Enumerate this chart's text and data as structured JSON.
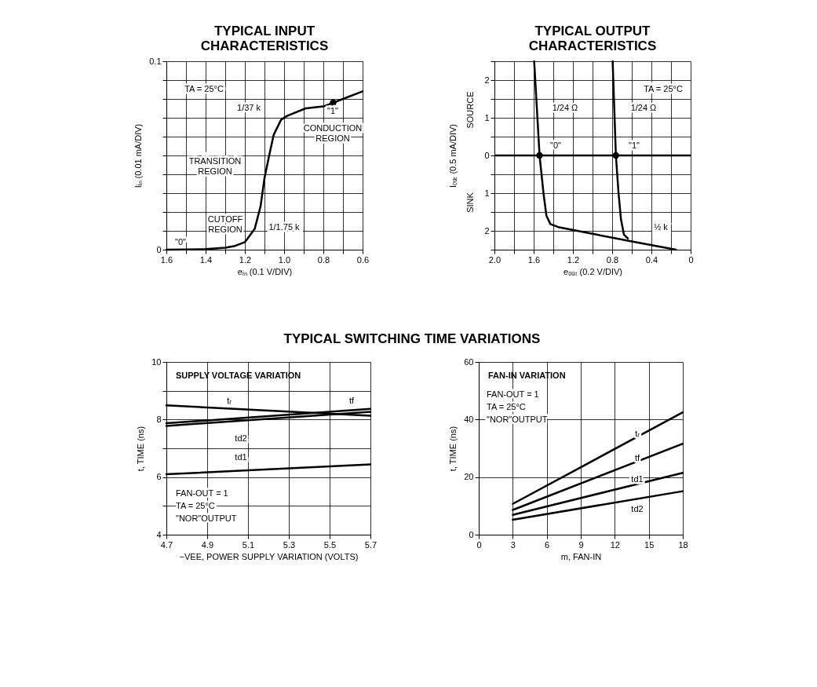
{
  "chart_data": [
    {
      "type": "line",
      "title": "TYPICAL INPUT CHARACTERISTICS",
      "xlabel": "eᵢₙ (0.1 V/DIV)",
      "ylabel": "Iᵢₙ (0.01 mA/DIV)",
      "xlim": [
        1.6,
        0.6
      ],
      "xticks": [
        1.6,
        {
          "value": 1.5,
          "label": null
        },
        1.4,
        {
          "value": 1.3,
          "label": null
        },
        1.2,
        {
          "value": 1.1,
          "label": null
        },
        {
          "value": 1.0,
          "label": "1.0"
        },
        {
          "value": 0.9,
          "label": null
        },
        0.8,
        {
          "value": 0.7,
          "label": null
        },
        0.6
      ],
      "ylim": [
        0,
        0.1
      ],
      "yticks": [
        0,
        {
          "value": 0.01,
          "label": null
        },
        {
          "value": 0.02,
          "label": null
        },
        {
          "value": 0.03,
          "label": null
        },
        {
          "value": 0.04,
          "label": null
        },
        {
          "value": 0.05,
          "label": null
        },
        {
          "value": 0.06,
          "label": null
        },
        {
          "value": 0.07,
          "label": null
        },
        {
          "value": 0.08,
          "label": null
        },
        {
          "value": 0.09,
          "label": null
        },
        0.1
      ],
      "grid": true,
      "series": [
        {
          "color": "#000000",
          "x": [
            1.6,
            1.5,
            1.4,
            1.3,
            1.25,
            1.2,
            1.15,
            1.12,
            1.1,
            1.076,
            1.053,
            1.015,
            0.985,
            0.89,
            0.8,
            0.75,
            0.7,
            0.6
          ],
          "values": [
            0,
            0.0001,
            0.0003,
            0.001,
            0.002,
            0.004,
            0.011,
            0.023,
            0.038,
            0.05,
            0.061,
            0.069,
            0.071,
            0.075,
            0.076,
            0.078,
            0.08,
            0.084
          ]
        },
        {
          "type": "scatter",
          "marker": "circle",
          "color": "#000000",
          "x": [
            0.75
          ],
          "values": [
            0.078
          ]
        }
      ],
      "annotations": [
        "TA = 25°C",
        "1/37 k",
        "\"1\"",
        "CONDUCTION\nREGION",
        "TRANSITION\nREGION",
        "CUTOFF\nREGION",
        "1/1.75 k",
        "\"0\""
      ]
    },
    {
      "type": "line",
      "title": "TYPICAL OUTPUT CHARACTERISTICS",
      "xlabel": "eₒᵤₜ (0.2 V/DIV)",
      "ylabel": "Iₒᵤₜ (0.5 mA/DIV)",
      "xlim": [
        2.0,
        0
      ],
      "xticks": [
        {
          "value": 2.0,
          "label": "2.0"
        },
        {
          "value": 1.8,
          "label": null
        },
        1.6,
        {
          "value": 1.4,
          "label": null
        },
        1.2,
        {
          "value": 1.0,
          "label": null
        },
        0.8,
        {
          "value": 0.6,
          "label": null
        },
        0.4,
        {
          "value": 0.2,
          "label": null
        },
        0
      ],
      "ylim": [
        -2.5,
        2.5
      ],
      "yticks": [
        {
          "value": -2.5,
          "label": null
        },
        {
          "value": -2,
          "label": "2"
        },
        {
          "value": -1.5,
          "label": null
        },
        {
          "value": -1,
          "label": "1"
        },
        {
          "value": -0.5,
          "label": null
        },
        0,
        {
          "value": 0.5,
          "label": null
        },
        1,
        {
          "value": 1.5,
          "label": null
        },
        2,
        {
          "value": 2.5,
          "label": null
        }
      ],
      "grid": true,
      "ref_lines": [
        {
          "axis": "y",
          "value": 0,
          "color": "#000000"
        }
      ],
      "series": [
        {
          "color": "#000000",
          "x": [
            1.595,
            1.54,
            1.5,
            1.47,
            1.43,
            1.35,
            1.0,
            0.6,
            0.15
          ],
          "values": [
            2.5,
            0,
            -1,
            -1.6,
            -1.82,
            -1.9,
            -2.08,
            -2.28,
            -2.5
          ]
        },
        {
          "color": "#000000",
          "x": [
            0.795,
            0.762,
            0.735,
            0.71,
            0.68,
            0.64
          ],
          "values": [
            2.5,
            0,
            -1,
            -1.7,
            -2.1,
            -2.2
          ]
        },
        {
          "type": "scatter",
          "marker": "circle",
          "color": "#000000",
          "x": [
            1.54,
            0.762
          ],
          "values": [
            0,
            0
          ]
        }
      ],
      "annotations": [
        "TA = 25°C",
        "1/24 Ω",
        "1/24 Ω",
        "\"0\"",
        "\"1\"",
        "½ k",
        "SOURCE",
        "SINK"
      ]
    },
    {
      "type": "line",
      "title": "TYPICAL SWITCHING TIME VARIATIONS",
      "subtitle": "SUPPLY VOLTAGE VARIATION",
      "xlabel": "−VEE, POWER SUPPLY VARIATION (VOLTS)",
      "ylabel": "t, TIME (ns)",
      "xlim": [
        4.7,
        5.7
      ],
      "xticks": [
        4.7,
        4.9,
        5.1,
        5.3,
        5.5,
        5.7
      ],
      "ylim": [
        4,
        10
      ],
      "yticks": [
        4,
        {
          "value": 5,
          "label": null
        },
        6,
        {
          "value": 7,
          "label": null
        },
        8,
        {
          "value": 9,
          "label": null
        },
        10
      ],
      "grid": true,
      "series": [
        {
          "name": "tᵣ",
          "color": "#000000",
          "x": [
            4.7,
            5.7
          ],
          "values": [
            8.49,
            8.13
          ]
        },
        {
          "name": "tf",
          "color": "#000000",
          "x": [
            4.7,
            5.7
          ],
          "values": [
            7.87,
            8.37
          ]
        },
        {
          "name": "td2",
          "color": "#000000",
          "x": [
            4.7,
            5.7
          ],
          "values": [
            7.78,
            8.27
          ]
        },
        {
          "name": "td1",
          "color": "#000000",
          "x": [
            4.7,
            5.7
          ],
          "values": [
            6.1,
            6.44
          ]
        }
      ],
      "annotations": [
        "FAN-OUT = 1",
        "TA = 25°C",
        "\"NOR\"OUTPUT"
      ]
    },
    {
      "type": "line",
      "subtitle": "FAN-IN VARIATION",
      "xlabel": "m, FAN-IN",
      "ylabel": "t, TIME (ns)",
      "xlim": [
        0,
        18
      ],
      "xticks": [
        0,
        3,
        6,
        9,
        12,
        15,
        18
      ],
      "ylim": [
        0,
        60
      ],
      "yticks": [
        0,
        20,
        40,
        60
      ],
      "grid": true,
      "series": [
        {
          "name": "tᵣ",
          "color": "#000000",
          "x": [
            3,
            18
          ],
          "values": [
            10.7,
            42.5
          ]
        },
        {
          "name": "tf",
          "color": "#000000",
          "x": [
            3,
            18
          ],
          "values": [
            8.6,
            31.6
          ]
        },
        {
          "name": "td1",
          "color": "#000000",
          "x": [
            3,
            18
          ],
          "values": [
            6.9,
            21.5
          ]
        },
        {
          "name": "td2",
          "color": "#000000",
          "x": [
            3,
            18
          ],
          "values": [
            5.2,
            15.1
          ]
        }
      ],
      "annotations": [
        "FAN-OUT = 1",
        "TA = 25°C",
        "\"NOR\"OUTPUT"
      ]
    }
  ]
}
